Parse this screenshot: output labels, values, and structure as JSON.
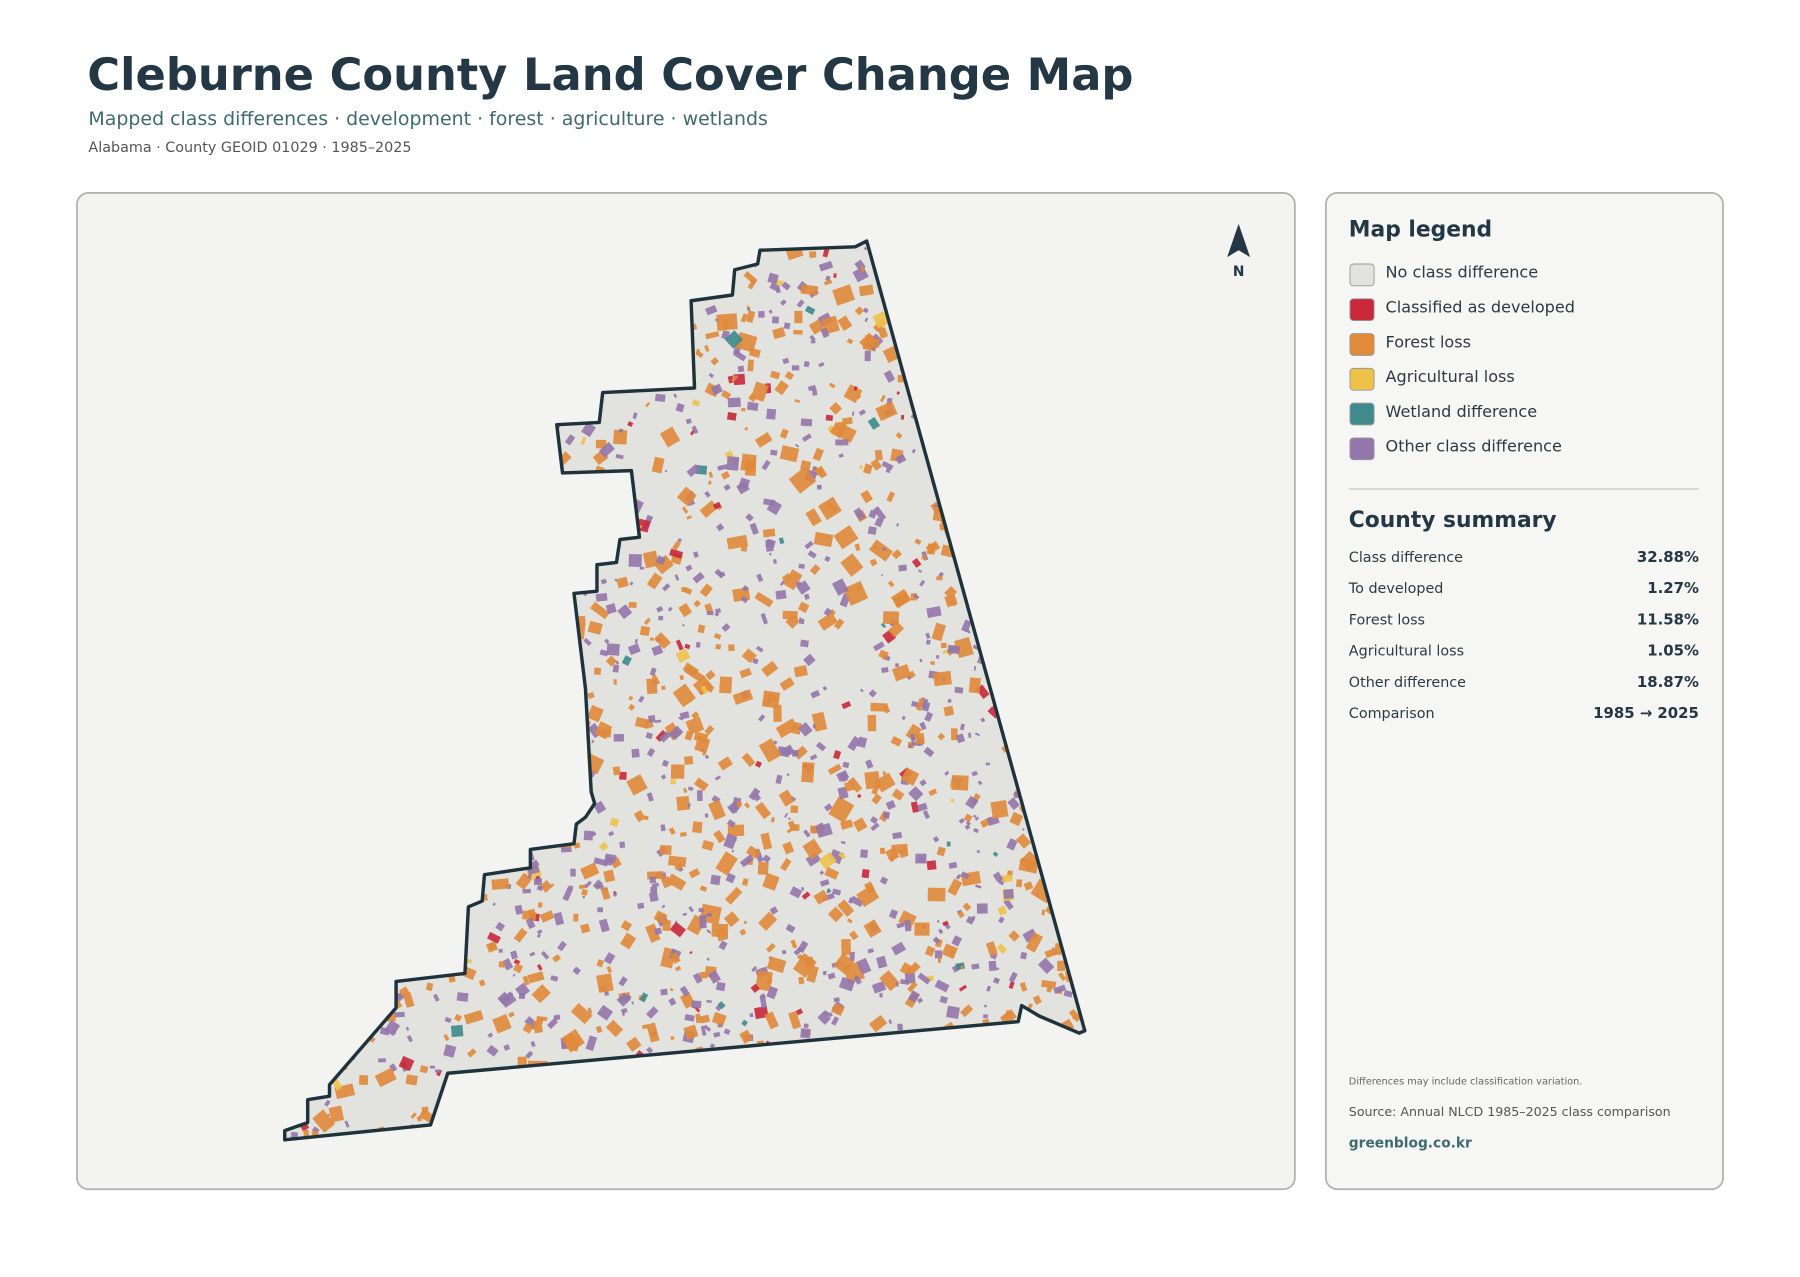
{
  "header": {
    "title": "Cleburne County Land Cover Change Map",
    "subtitle": "Mapped class differences · development · forest · agriculture · wetlands",
    "meta": "Alabama · County GEOID 01029 · 1985–2025"
  },
  "map": {
    "north_label": "N"
  },
  "legend": {
    "title": "Map legend",
    "items": [
      {
        "label": "No class difference",
        "color": "#e2e2de"
      },
      {
        "label": "Classified as developed",
        "color": "#c8283a"
      },
      {
        "label": "Forest loss",
        "color": "#e08a3a"
      },
      {
        "label": "Agricultural loss",
        "color": "#eec24a"
      },
      {
        "label": "Wetland difference",
        "color": "#3f8a8c"
      },
      {
        "label": "Other class difference",
        "color": "#9376ab"
      }
    ]
  },
  "summary": {
    "title": "County summary",
    "rows": [
      [
        "Class difference",
        "32.88%"
      ],
      [
        "To developed",
        "1.27%"
      ],
      [
        "Forest loss",
        "11.58%"
      ],
      [
        "Agricultural loss",
        "1.05%"
      ],
      [
        "Other difference",
        "18.87%"
      ],
      [
        "Comparison",
        "1985 → 2025"
      ]
    ]
  },
  "footer": {
    "note": "Differences may include classification variation.",
    "source": "Source: Annual NLCD 1985–2025 class comparison",
    "credit": "greenblog.co.kr"
  }
}
